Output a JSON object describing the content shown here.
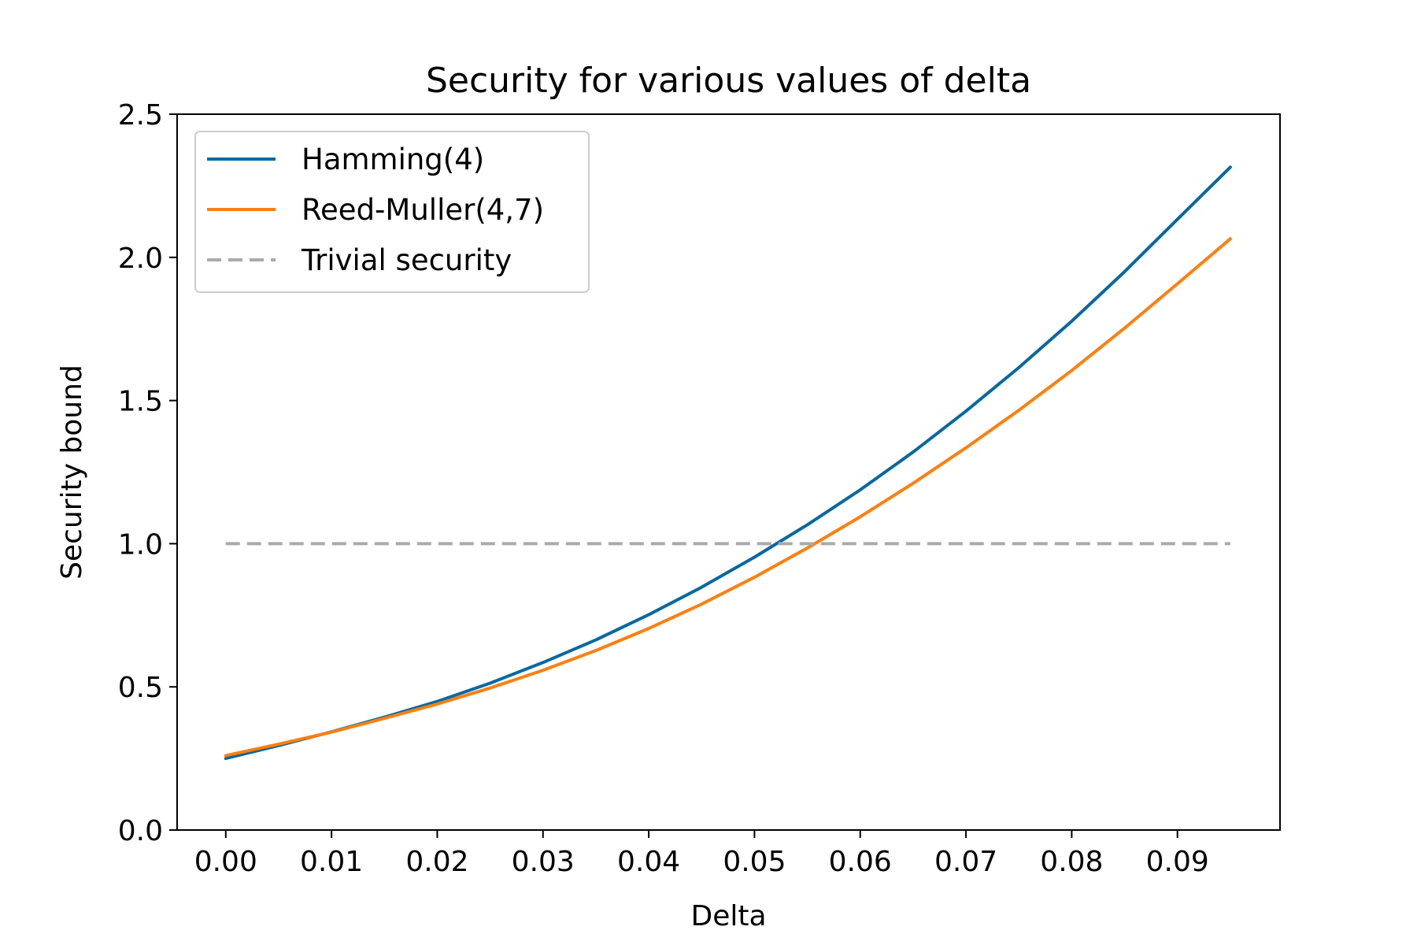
{
  "chart_data": {
    "type": "line",
    "title": "Security for various values of delta",
    "xlabel": "Delta",
    "ylabel": "Security bound",
    "xlim": [
      -0.0046,
      0.0997
    ],
    "ylim": [
      0,
      2.5
    ],
    "xticks": [
      0.0,
      0.01,
      0.02,
      0.03,
      0.04,
      0.05,
      0.06,
      0.07,
      0.08,
      0.09
    ],
    "xtick_labels": [
      "0.00",
      "0.01",
      "0.02",
      "0.03",
      "0.04",
      "0.05",
      "0.06",
      "0.07",
      "0.08",
      "0.09"
    ],
    "yticks": [
      0.0,
      0.5,
      1.0,
      1.5,
      2.0,
      2.5
    ],
    "ytick_labels": [
      "0.0",
      "0.5",
      "1.0",
      "1.5",
      "2.0",
      "2.5"
    ],
    "grid": false,
    "legend_position": "upper-left",
    "x": [
      0.0,
      0.005,
      0.01,
      0.015,
      0.02,
      0.025,
      0.03,
      0.035,
      0.04,
      0.045,
      0.05,
      0.055,
      0.06,
      0.065,
      0.07,
      0.075,
      0.08,
      0.085,
      0.09,
      0.095
    ],
    "series": [
      {
        "name": "Hamming(4)",
        "color": "#0868a0",
        "dash": "solid",
        "values": [
          0.25,
          0.295,
          0.343,
          0.394,
          0.449,
          0.513,
          0.585,
          0.664,
          0.752,
          0.848,
          0.953,
          1.066,
          1.188,
          1.32,
          1.463,
          1.615,
          1.777,
          1.95,
          2.133,
          2.315
        ]
      },
      {
        "name": "Reed-Muller(4,7)",
        "color": "#ff7f0e",
        "dash": "solid",
        "values": [
          0.26,
          0.3,
          0.342,
          0.39,
          0.44,
          0.496,
          0.558,
          0.627,
          0.704,
          0.789,
          0.883,
          0.985,
          1.094,
          1.211,
          1.335,
          1.466,
          1.605,
          1.753,
          1.908,
          2.065
        ]
      },
      {
        "name": "Trivial security",
        "color": "#aaaaaa",
        "dash": "dashed",
        "values": [
          1,
          1,
          1,
          1,
          1,
          1,
          1,
          1,
          1,
          1,
          1,
          1,
          1,
          1,
          1,
          1,
          1,
          1,
          1,
          1
        ]
      }
    ]
  }
}
